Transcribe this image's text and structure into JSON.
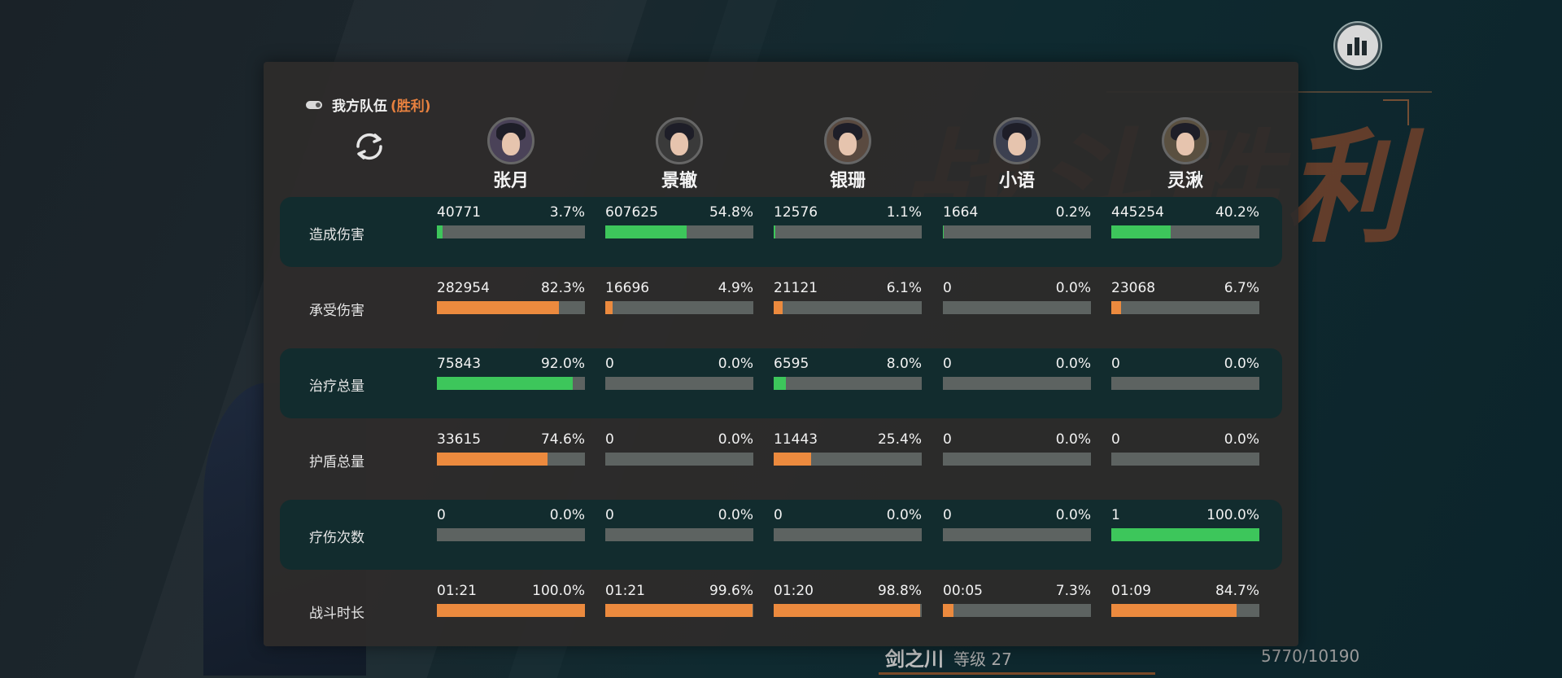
{
  "panel": {
    "title": "我方队伍",
    "result": "(胜利)"
  },
  "players": [
    {
      "name": "张月"
    },
    {
      "name": "景辙"
    },
    {
      "name": "银珊"
    },
    {
      "name": "小语"
    },
    {
      "name": "灵湫"
    }
  ],
  "stats": [
    {
      "label": "造成伤害",
      "color": "#3dc65b",
      "cells": [
        {
          "value": "40771",
          "percent": "3.7%",
          "fill": 0.037
        },
        {
          "value": "607625",
          "percent": "54.8%",
          "fill": 0.548
        },
        {
          "value": "12576",
          "percent": "1.1%",
          "fill": 0.011
        },
        {
          "value": "1664",
          "percent": "0.2%",
          "fill": 0.002
        },
        {
          "value": "445254",
          "percent": "40.2%",
          "fill": 0.402
        }
      ]
    },
    {
      "label": "承受伤害",
      "color": "#ec8a3e",
      "cells": [
        {
          "value": "282954",
          "percent": "82.3%",
          "fill": 0.823
        },
        {
          "value": "16696",
          "percent": "4.9%",
          "fill": 0.049
        },
        {
          "value": "21121",
          "percent": "6.1%",
          "fill": 0.061
        },
        {
          "value": "0",
          "percent": "0.0%",
          "fill": 0.0
        },
        {
          "value": "23068",
          "percent": "6.7%",
          "fill": 0.067
        }
      ]
    },
    {
      "label": "治疗总量",
      "color": "#3dc65b",
      "cells": [
        {
          "value": "75843",
          "percent": "92.0%",
          "fill": 0.92
        },
        {
          "value": "0",
          "percent": "0.0%",
          "fill": 0.0
        },
        {
          "value": "6595",
          "percent": "8.0%",
          "fill": 0.08
        },
        {
          "value": "0",
          "percent": "0.0%",
          "fill": 0.0
        },
        {
          "value": "0",
          "percent": "0.0%",
          "fill": 0.0
        }
      ]
    },
    {
      "label": "护盾总量",
      "color": "#ec8a3e",
      "cells": [
        {
          "value": "33615",
          "percent": "74.6%",
          "fill": 0.746
        },
        {
          "value": "0",
          "percent": "0.0%",
          "fill": 0.0
        },
        {
          "value": "11443",
          "percent": "25.4%",
          "fill": 0.254
        },
        {
          "value": "0",
          "percent": "0.0%",
          "fill": 0.0
        },
        {
          "value": "0",
          "percent": "0.0%",
          "fill": 0.0
        }
      ]
    },
    {
      "label": "疗伤次数",
      "color": "#3dc65b",
      "cells": [
        {
          "value": "0",
          "percent": "0.0%",
          "fill": 0.0
        },
        {
          "value": "0",
          "percent": "0.0%",
          "fill": 0.0
        },
        {
          "value": "0",
          "percent": "0.0%",
          "fill": 0.0
        },
        {
          "value": "0",
          "percent": "0.0%",
          "fill": 0.0
        },
        {
          "value": "1",
          "percent": "100.0%",
          "fill": 1.0
        }
      ]
    },
    {
      "label": "战斗时长",
      "color": "#ec8a3e",
      "cells": [
        {
          "value": "01:21",
          "percent": "100.0%",
          "fill": 1.0
        },
        {
          "value": "01:21",
          "percent": "99.6%",
          "fill": 0.996
        },
        {
          "value": "01:20",
          "percent": "98.8%",
          "fill": 0.988
        },
        {
          "value": "00:05",
          "percent": "7.3%",
          "fill": 0.073
        },
        {
          "value": "01:09",
          "percent": "84.7%",
          "fill": 0.847
        }
      ]
    }
  ],
  "background": {
    "victory_text": "战斗胜利",
    "character_name": "剑之川",
    "level_text": "等级 27",
    "exp_text": "5770/10190"
  },
  "icons": {
    "toggle": "toggle-icon",
    "refresh": "refresh-icon",
    "stats": "bar-chart-icon"
  }
}
